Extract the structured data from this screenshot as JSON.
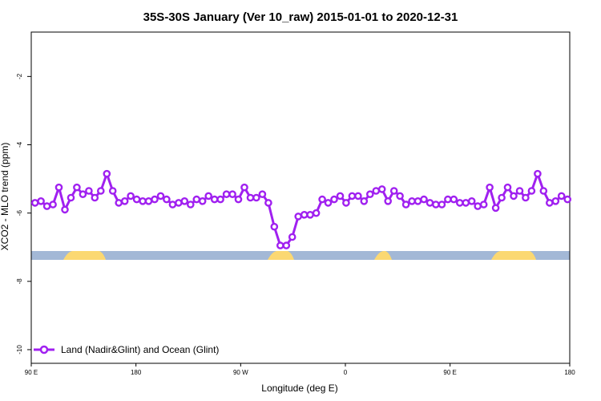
{
  "chart_data": {
    "type": "line",
    "title": "35S-30S January (Ver 10_raw)   2015-01-01 to 2020-12-31",
    "xlabel": "Longitude (deg E)",
    "ylabel": "XCO2 - MLO trend (ppm)",
    "xlim": [
      90,
      450
    ],
    "ylim": [
      -10.4,
      -0.7
    ],
    "x_ticks": [
      {
        "value": 90,
        "label": "90 E"
      },
      {
        "value": 160,
        "label": "180"
      },
      {
        "value": 230,
        "label": "90 W"
      },
      {
        "value": 300,
        "label": "0"
      },
      {
        "value": 370,
        "label": "90 E"
      },
      {
        "value": 450,
        "label": "180"
      }
    ],
    "y_ticks": [
      {
        "value": -2,
        "label": "-2"
      },
      {
        "value": -4,
        "label": "-4"
      },
      {
        "value": -6,
        "label": "-6"
      },
      {
        "value": -8,
        "label": "-8"
      },
      {
        "value": -10,
        "label": "-10"
      }
    ],
    "grid": false,
    "legend_position": "bottom-left",
    "series": [
      {
        "name": "Land (Nadir&Glint) and Ocean (Glint)",
        "color": "#a020f0",
        "x": [
          92.5,
          96.5,
          100.5,
          104.5,
          108.5,
          112.5,
          116.5,
          120.5,
          124.5,
          128.5,
          132.5,
          136.5,
          140.5,
          144.5,
          148.5,
          152.5,
          156.5,
          160.5,
          164.5,
          168.5,
          172.5,
          176.5,
          180.5,
          184.5,
          188.5,
          192.5,
          196.5,
          200.5,
          204.5,
          208.5,
          212.5,
          216.5,
          220.5,
          224.5,
          228.5,
          232.5,
          236.5,
          240.5,
          244.5,
          248.5,
          252.5,
          256.5,
          260.5,
          264.5,
          268.5,
          272.5,
          276.5,
          280.5,
          284.5,
          288.5,
          292.5,
          296.5,
          300.5,
          304.5,
          308.5,
          312.5,
          316.5,
          320.5,
          324.5,
          328.5,
          332.5,
          336.5,
          340.5,
          344.5,
          348.5,
          352.5,
          356.5,
          360.5,
          364.5,
          368.5,
          372.5,
          376.5,
          380.5,
          384.5,
          388.5,
          392.5,
          396.5,
          400.5,
          404.5,
          408.5,
          412.5,
          416.5,
          420.5,
          424.5,
          428.5,
          432.5,
          436.5,
          440.5,
          444.5,
          448.5
        ],
        "values": [
          -5.7,
          -5.65,
          -5.8,
          -5.75,
          -5.25,
          -5.9,
          -5.55,
          -5.25,
          -5.45,
          -5.35,
          -5.55,
          -5.35,
          -4.85,
          -5.35,
          -5.7,
          -5.65,
          -5.5,
          -5.6,
          -5.65,
          -5.65,
          -5.6,
          -5.5,
          -5.6,
          -5.75,
          -5.7,
          -5.65,
          -5.75,
          -5.6,
          -5.65,
          -5.5,
          -5.6,
          -5.6,
          -5.45,
          -5.45,
          -5.6,
          -5.25,
          -5.55,
          -5.55,
          -5.45,
          -5.7,
          -6.4,
          -6.95,
          -6.95,
          -6.7,
          -6.1,
          -6.05,
          -6.05,
          -6.0,
          -5.6,
          -5.7,
          -5.6,
          -5.5,
          -5.7,
          -5.5,
          -5.5,
          -5.65,
          -5.45,
          -5.35,
          -5.3,
          -5.65,
          -5.35,
          -5.5,
          -5.75,
          -5.65,
          -5.65,
          -5.6,
          -5.7,
          -5.75,
          -5.75,
          -5.6,
          -5.6,
          -5.7,
          -5.7,
          -5.65,
          -5.8,
          -5.75,
          -5.25,
          -5.85,
          -5.55,
          -5.25,
          -5.5,
          -5.35,
          -5.55,
          -5.35,
          -4.85,
          -5.35,
          -5.7,
          -5.65,
          -5.5,
          -5.6
        ]
      }
    ]
  }
}
